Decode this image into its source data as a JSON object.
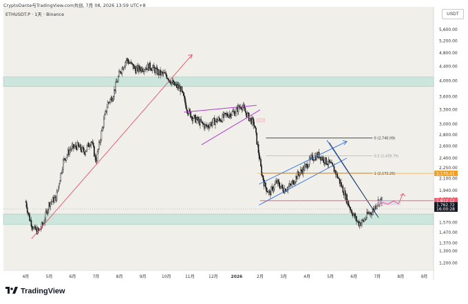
{
  "header": {
    "attribution": "CryptoDante与TradingView.com共创, 7月 08, 2026 13:59 UTC+8",
    "symbol": "ETHUSDT.P · 1天 · Binance",
    "currency": "USDT"
  },
  "footer": {
    "logo_text": "TradingView"
  },
  "colors": {
    "background": "#f1efe9",
    "zone": "#cde6dd",
    "candle": "#161616",
    "red_line": "#e7506b",
    "purple_line": "#b13ad0",
    "blue_line": "#2f6fe6",
    "orange_badge": "#f49e1c",
    "red_badge": "#ef5c6e"
  },
  "chart_data": {
    "type": "candlestick",
    "y_scale": "log",
    "ylim": [
      1150,
      6000
    ],
    "y_ticks": [
      "5,600.00",
      "5,200.00",
      "4,800.00",
      "4,400.00",
      "4,000.00",
      "3,600.00",
      "3,300.00",
      "3,000.00",
      "2,800.00",
      "2,600.00",
      "2,400.00",
      "2,250.00",
      "2,100.00",
      "1,940.00",
      "1,830.00",
      "1,720.00",
      "1,570.00",
      "1,470.00",
      "1,370.00",
      "1,300.00",
      "1,200.00"
    ],
    "y_tick_values": [
      5600,
      5200,
      4800,
      4400,
      4000,
      3600,
      3300,
      3000,
      2800,
      2600,
      2400,
      2250,
      2100,
      1940,
      1830,
      1720,
      1570,
      1470,
      1370,
      1300,
      1200
    ],
    "x_ticks": [
      "4月",
      "5月",
      "6月",
      "7月",
      "8月",
      "9月",
      "10月",
      "11月",
      "12月",
      "2026",
      "2月",
      "3月",
      "4月",
      "5月",
      "6月",
      "7月",
      "8月",
      "9月"
    ],
    "x_tick_months": [
      0,
      1,
      2,
      3,
      4,
      5,
      6,
      7,
      8,
      9,
      10,
      11,
      12,
      13,
      14,
      15,
      16,
      17
    ],
    "bold_tick": "2026",
    "price_path_months": [
      0.0,
      0.15,
      0.35,
      0.55,
      0.75,
      1.0,
      1.3,
      1.6,
      1.9,
      2.2,
      2.5,
      2.8,
      3.0,
      3.3,
      3.5,
      3.7,
      4.0,
      4.3,
      4.5,
      4.7,
      5.0,
      5.3,
      5.7,
      6.0,
      6.3,
      6.6,
      6.9,
      7.1,
      7.4,
      7.7,
      8.0,
      8.3,
      8.6,
      8.9,
      9.2,
      9.5,
      9.75,
      9.95,
      10.05,
      10.2,
      10.4,
      10.7,
      11.0,
      11.3,
      11.6,
      11.9,
      12.2,
      12.5,
      12.8,
      13.0,
      13.2,
      13.4,
      13.6,
      13.8,
      14.0,
      14.2,
      14.4,
      14.6,
      14.8,
      15.0,
      15.2
    ],
    "price_path_values": [
      1800,
      1620,
      1500,
      1480,
      1560,
      1780,
      1850,
      2350,
      2550,
      2600,
      2500,
      2700,
      2350,
      3000,
      3450,
      3600,
      4200,
      4600,
      4450,
      4300,
      4350,
      4400,
      4200,
      4150,
      3900,
      3800,
      3300,
      3150,
      3050,
      2950,
      3050,
      3100,
      3200,
      3250,
      3400,
      3150,
      3000,
      2450,
      2200,
      2000,
      1900,
      2050,
      1950,
      2000,
      2150,
      2250,
      2400,
      2450,
      2350,
      2300,
      2200,
      2050,
      1900,
      1750,
      1640,
      1560,
      1580,
      1660,
      1690,
      1800,
      1812
    ],
    "zones": [
      {
        "low": 3850,
        "high": 4100
      },
      {
        "low": 1550,
        "high": 1660
      }
    ],
    "annotations": {
      "fib": [
        {
          "label": "0 (2,740.09)",
          "value": 2740
        },
        {
          "label": "0.5 (2,439.79)",
          "value": 2440
        },
        {
          "label": "1 (2,172.26)",
          "value": 2172
        }
      ],
      "price_badges": [
        {
          "label": "2,170.41",
          "value": 2170,
          "color": "#f49e1c"
        },
        {
          "label": "1,812.12",
          "value": 1812,
          "color": "#ef5c6e"
        },
        {
          "label": "1,762.72",
          "value": 1762,
          "color": "#131722"
        },
        {
          "label": "16:00:28",
          "value": 1715,
          "color": "#131722"
        }
      ]
    }
  }
}
